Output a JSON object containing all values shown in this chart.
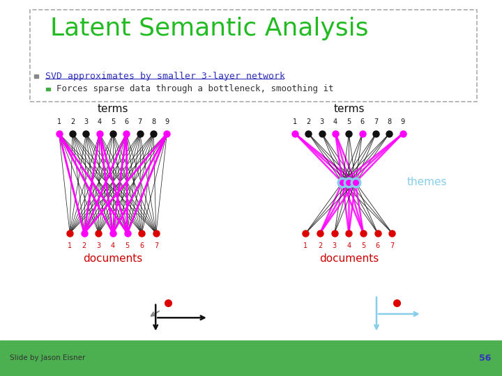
{
  "title": "Latent Semantic Analysis",
  "bullet1": "SVD approximates by smaller 3-layer network",
  "bullet2": "Forces sparse data through a bottleneck, smoothing it",
  "slide_credit": "Slide by Jason Eisner",
  "slide_num": "56",
  "bg_color": "#ffffff",
  "green_bar_color": "#4caf50",
  "title_color": "#22bb22",
  "bullet1_color": "#3333bb",
  "bullet2_color": "#333333",
  "n_terms": 9,
  "n_docs": 7,
  "highlight_terms": [
    0,
    3,
    5,
    8
  ],
  "highlight_docs": [
    1,
    3,
    4
  ],
  "term_node_color": "#111111",
  "doc_node_color": "#dd0000",
  "highlight_color": "#ff00ff",
  "theme_color": "#87ceeb",
  "edge_color": "#111111",
  "highlight_edge_color": "#ff00ff"
}
